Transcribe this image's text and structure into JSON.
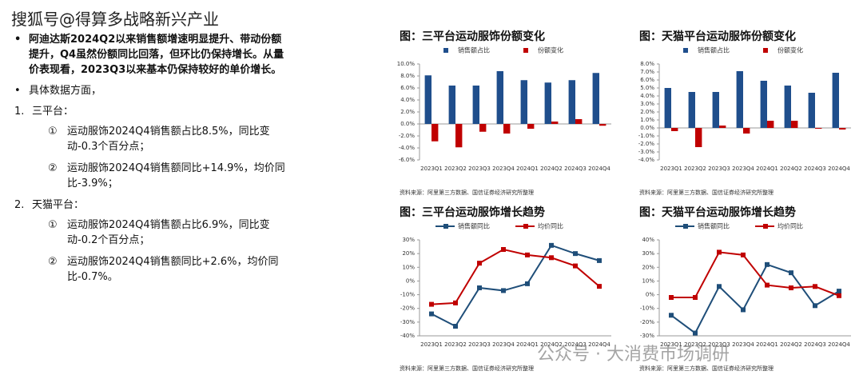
{
  "watermark": "搜狐号@得算多战略新兴产业",
  "text": {
    "bullets": [
      "阿迪达斯2024Q2以来销售额增速明显提升、带动份额提升，Q4虽然份额同比回落，但环比仍保持增长。从量价表现看，2023Q3以来基本仍保持较好的单价增长。",
      "具体数据方面，"
    ],
    "platforms": [
      {
        "marker": "1.",
        "name": "三平台：",
        "items": [
          {
            "marker": "①",
            "text": "运动服饰2024Q4销售额占比8.5%，同比变动-0.3个百分点；"
          },
          {
            "marker": "②",
            "text": "运动服饰2024Q4销售额同比+14.9%，均价同比-3.9%；"
          }
        ]
      },
      {
        "marker": "2.",
        "name": "天猫平台：",
        "items": [
          {
            "marker": "①",
            "text": "运动服饰2024Q4销售额占比6.9%，同比变动-0.2个百分点；"
          },
          {
            "marker": "②",
            "text": "运动服饰2024Q4销售额同比+2.6%，均价同比-0.7%。"
          }
        ]
      }
    ]
  },
  "chart_data": [
    {
      "type": "bar",
      "title": "图：三平台运动服饰份额变化",
      "categories": [
        "2023Q1",
        "2023Q2",
        "2023Q3",
        "2023Q4",
        "2024Q1",
        "2024Q2",
        "2024Q3",
        "2024Q4"
      ],
      "series": [
        {
          "name": "销售额占比",
          "color": "#1f4e8c",
          "values": [
            8.1,
            6.4,
            6.4,
            8.8,
            7.3,
            6.9,
            7.3,
            8.5
          ]
        },
        {
          "name": "份额变化",
          "color": "#c00000",
          "values": [
            -2.9,
            -3.9,
            -1.3,
            -1.6,
            -0.8,
            0.4,
            0.8,
            -0.3
          ]
        }
      ],
      "ylim": [
        -6,
        10
      ],
      "yticks": [
        {
          "value": -6,
          "label": "-6.0%"
        },
        {
          "value": -4,
          "label": "-4.0%"
        },
        {
          "value": -2,
          "label": "-2.0%"
        },
        {
          "value": 0,
          "label": "0.0%"
        },
        {
          "value": 2,
          "label": "2.0%"
        },
        {
          "value": 4,
          "label": "4.0%"
        },
        {
          "value": 6,
          "label": "6.0%"
        },
        {
          "value": 8,
          "label": "8.0%"
        },
        {
          "value": 10,
          "label": "10.0%"
        }
      ],
      "source": "资料来源：阿里第三方数据、国信证券经济研究所整理"
    },
    {
      "type": "bar",
      "title": "图：天猫平台运动服饰份额变化",
      "categories": [
        "2023Q1",
        "2023Q2",
        "2023Q3",
        "2023Q4",
        "2024Q1",
        "2024Q2",
        "2024Q3",
        "2024Q4"
      ],
      "series": [
        {
          "name": "销售额占比",
          "color": "#1f4e8c",
          "values": [
            5.0,
            4.5,
            4.5,
            7.1,
            5.9,
            5.3,
            4.4,
            6.9
          ]
        },
        {
          "name": "份额变化",
          "color": "#c00000",
          "values": [
            -0.4,
            -2.4,
            0.3,
            -0.7,
            0.9,
            0.9,
            -0.1,
            -0.2
          ]
        }
      ],
      "ylim": [
        -4,
        8
      ],
      "yticks": [
        {
          "value": -4,
          "label": "-4.0%"
        },
        {
          "value": -3,
          "label": "-3.0%"
        },
        {
          "value": -2,
          "label": "-2.0%"
        },
        {
          "value": -1,
          "label": "-1.0%"
        },
        {
          "value": 0,
          "label": "0.0%"
        },
        {
          "value": 1,
          "label": "1.0%"
        },
        {
          "value": 2,
          "label": "2.0%"
        },
        {
          "value": 3,
          "label": "3.0%"
        },
        {
          "value": 4,
          "label": "4.0%"
        },
        {
          "value": 5,
          "label": "5.0%"
        },
        {
          "value": 6,
          "label": "6.0%"
        },
        {
          "value": 7,
          "label": "7.0%"
        },
        {
          "value": 8,
          "label": "8.0%"
        }
      ],
      "source": "资料来源：阿里第三方数据、国信证券经济研究所整理"
    },
    {
      "type": "line",
      "title": "图：三平台运动服饰增长趋势",
      "categories": [
        "2023Q1",
        "2023Q2",
        "2023Q3",
        "2023Q4",
        "2024Q1",
        "2024Q2",
        "2024Q3",
        "2024Q4"
      ],
      "series": [
        {
          "name": "销售额同比",
          "color": "#1f4e79",
          "values": [
            -24,
            -33,
            -5,
            -7,
            -2,
            26,
            20,
            14.9
          ]
        },
        {
          "name": "均价同比",
          "color": "#c00000",
          "values": [
            -17,
            -16,
            13,
            23,
            19,
            17,
            11,
            -3.9
          ]
        }
      ],
      "ylim": [
        -40,
        30
      ],
      "yticks": [
        {
          "value": -40,
          "label": "-40%"
        },
        {
          "value": -30,
          "label": "-30%"
        },
        {
          "value": -20,
          "label": "-20%"
        },
        {
          "value": -10,
          "label": "-10%"
        },
        {
          "value": 0,
          "label": "0%"
        },
        {
          "value": 10,
          "label": "10%"
        },
        {
          "value": 20,
          "label": "20%"
        },
        {
          "value": 30,
          "label": "30%"
        }
      ],
      "source": "资料来源：阿里第三方数据、国信证券经济研究所整理"
    },
    {
      "type": "line",
      "title": "图：天猫平台运动服饰增长趋势",
      "categories": [
        "2023Q1",
        "2023Q2",
        "2023Q3",
        "2023Q4",
        "2024Q1",
        "2024Q2",
        "2024Q3",
        "2024Q4"
      ],
      "series": [
        {
          "name": "销售额同比",
          "color": "#1f4e79",
          "values": [
            -15,
            -28,
            6,
            -11,
            22,
            16,
            -8,
            2.6
          ]
        },
        {
          "name": "均价同比",
          "color": "#c00000",
          "values": [
            -2,
            -2,
            31,
            29,
            7,
            5,
            6,
            -0.7
          ]
        }
      ],
      "ylim": [
        -30,
        40
      ],
      "yticks": [
        {
          "value": -30,
          "label": "-30%"
        },
        {
          "value": -20,
          "label": "-20%"
        },
        {
          "value": -10,
          "label": "-10%"
        },
        {
          "value": 0,
          "label": "0%"
        },
        {
          "value": 10,
          "label": "10%"
        },
        {
          "value": 20,
          "label": "20%"
        },
        {
          "value": 30,
          "label": "30%"
        },
        {
          "value": 40,
          "label": "40%"
        }
      ],
      "source": "资料来源：阿里第三方数据、国信证券经济研究所整理"
    }
  ],
  "footer": "公众号 · 大消费市场调研"
}
